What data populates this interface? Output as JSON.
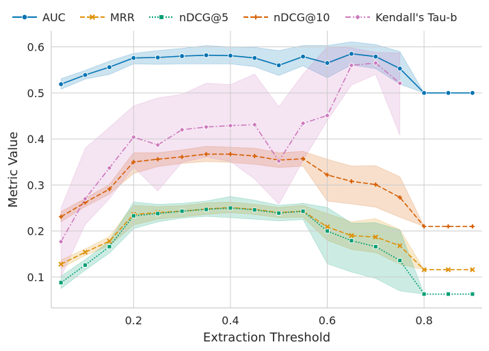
{
  "chart_data": {
    "type": "line",
    "title": "",
    "xlabel": "Extraction Threshold",
    "ylabel": "Metric Value",
    "xlim": [
      0.03,
      0.92
    ],
    "ylim": [
      0.033,
      0.635
    ],
    "xticks": [
      0.2,
      0.4,
      0.6,
      0.8
    ],
    "xtick_labels": [
      "0.2",
      "0.4",
      "0.6",
      "0.8"
    ],
    "yticks": [
      0.1,
      0.2,
      0.3,
      0.4,
      0.5,
      0.6
    ],
    "ytick_labels": [
      "0.1",
      "0.2",
      "0.3",
      "0.4",
      "0.5",
      "0.6"
    ],
    "grid": true,
    "legend_position": "top",
    "x": [
      0.05,
      0.1,
      0.15,
      0.2,
      0.25,
      0.3,
      0.35,
      0.4,
      0.45,
      0.5,
      0.55,
      0.6,
      0.65,
      0.7,
      0.75,
      0.8,
      0.85,
      0.9
    ],
    "series": [
      {
        "name": "AUC",
        "color": "#0173b2",
        "dash": "solid",
        "marker": "circle",
        "values": [
          0.519,
          0.539,
          0.556,
          0.576,
          0.577,
          0.58,
          0.582,
          0.581,
          0.576,
          0.56,
          0.579,
          0.565,
          0.585,
          0.579,
          0.553,
          0.5,
          0.5,
          0.5
        ],
        "lower": [
          0.508,
          0.53,
          0.54,
          0.563,
          0.562,
          0.563,
          0.563,
          0.563,
          0.557,
          0.538,
          0.559,
          0.533,
          0.561,
          0.553,
          0.519,
          0.5,
          null,
          null
        ],
        "upper": [
          0.531,
          0.549,
          0.569,
          0.586,
          0.592,
          0.597,
          0.603,
          0.6,
          0.599,
          0.592,
          0.603,
          0.603,
          0.611,
          0.605,
          0.59,
          0.5,
          null,
          null
        ]
      },
      {
        "name": "MRR",
        "color": "#de8f05",
        "dash": "dashed",
        "marker": "x",
        "values": [
          0.128,
          0.154,
          0.178,
          0.236,
          0.24,
          0.243,
          0.248,
          0.251,
          0.247,
          0.24,
          0.243,
          0.209,
          0.19,
          0.187,
          0.168,
          0.116,
          0.116,
          0.116
        ],
        "lower": [
          0.119,
          0.147,
          0.168,
          0.213,
          0.226,
          0.231,
          0.236,
          0.24,
          0.236,
          0.229,
          0.23,
          0.18,
          0.16,
          0.153,
          0.128,
          0.116,
          null,
          null
        ],
        "upper": [
          0.137,
          0.161,
          0.188,
          0.256,
          0.253,
          0.255,
          0.261,
          0.263,
          0.258,
          0.251,
          0.256,
          0.238,
          0.22,
          0.227,
          0.203,
          0.116,
          null,
          null
        ]
      },
      {
        "name": "nDCG@5",
        "color": "#029e73",
        "dash": "dotted",
        "marker": "square",
        "values": [
          0.088,
          0.126,
          0.166,
          0.233,
          0.238,
          0.243,
          0.247,
          0.25,
          0.246,
          0.239,
          0.243,
          0.2,
          0.179,
          0.166,
          0.136,
          0.063,
          0.063,
          0.063
        ],
        "lower": [
          0.075,
          0.115,
          0.152,
          0.205,
          0.22,
          0.228,
          0.232,
          0.229,
          0.226,
          0.222,
          0.225,
          0.129,
          0.111,
          0.097,
          0.07,
          0.063,
          null,
          null
        ],
        "upper": [
          0.102,
          0.138,
          0.178,
          0.263,
          0.258,
          0.26,
          0.265,
          0.275,
          0.267,
          0.256,
          0.26,
          0.251,
          0.217,
          0.218,
          0.202,
          0.063,
          null,
          null
        ]
      },
      {
        "name": "nDCG@10",
        "color": "#d55e00",
        "dash": "dashed",
        "marker": "plus",
        "values": [
          0.231,
          0.262,
          0.291,
          0.35,
          0.356,
          0.361,
          0.367,
          0.367,
          0.363,
          0.354,
          0.357,
          0.322,
          0.308,
          0.301,
          0.273,
          0.21,
          0.21,
          0.21
        ],
        "lower": [
          0.22,
          0.253,
          0.28,
          0.325,
          0.34,
          0.347,
          0.351,
          0.349,
          0.345,
          0.338,
          0.341,
          0.265,
          0.259,
          0.252,
          0.23,
          0.21,
          null,
          null
        ],
        "upper": [
          0.242,
          0.271,
          0.301,
          0.37,
          0.37,
          0.376,
          0.384,
          0.382,
          0.38,
          0.37,
          0.373,
          0.356,
          0.341,
          0.342,
          0.318,
          0.21,
          null,
          null
        ]
      },
      {
        "name": "Kendall's Tau-b",
        "color": "#cc78bc",
        "dash": "dashdot",
        "marker": "diamond",
        "values": [
          0.177,
          0.27,
          0.337,
          0.404,
          0.387,
          0.42,
          0.426,
          0.429,
          0.431,
          0.352,
          0.434,
          0.451,
          0.56,
          0.565,
          0.521,
          null,
          null,
          null
        ],
        "lower": [
          0.1,
          0.214,
          0.27,
          0.339,
          0.287,
          0.349,
          0.361,
          0.351,
          0.313,
          0.258,
          0.353,
          0.44,
          0.517,
          0.54,
          0.408,
          null,
          null,
          null
        ],
        "upper": [
          0.25,
          0.38,
          0.425,
          0.472,
          0.489,
          0.497,
          0.521,
          0.518,
          0.541,
          0.47,
          0.541,
          0.6,
          0.598,
          0.588,
          0.587,
          null,
          null,
          null
        ]
      }
    ]
  }
}
